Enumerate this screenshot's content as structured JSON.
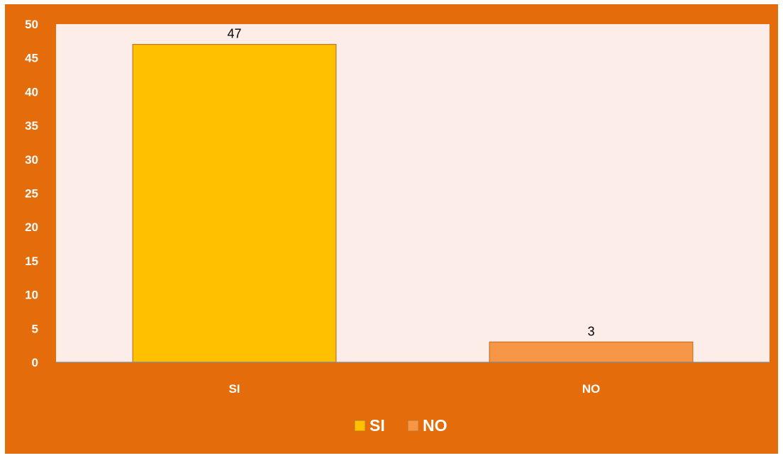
{
  "chart_data": {
    "type": "bar",
    "categories": [
      "SI",
      "NO"
    ],
    "values": [
      47,
      3
    ],
    "data_labels": [
      "47",
      "3"
    ],
    "colors": {
      "frame": "#E46C0A",
      "plot_area": "#FCEDE9",
      "bar_border": "#C0762A",
      "axis_line": "#888888",
      "series": [
        "#FFC000",
        "#F79646"
      ]
    },
    "legend": {
      "position": "bottom",
      "entries": [
        "SI",
        "NO"
      ]
    },
    "yticks": [
      "0",
      "5",
      "10",
      "15",
      "20",
      "25",
      "30",
      "35",
      "40",
      "45",
      "50"
    ],
    "ylim": [
      0,
      50
    ],
    "grid": false,
    "title": "",
    "xlabel": "",
    "ylabel": ""
  }
}
